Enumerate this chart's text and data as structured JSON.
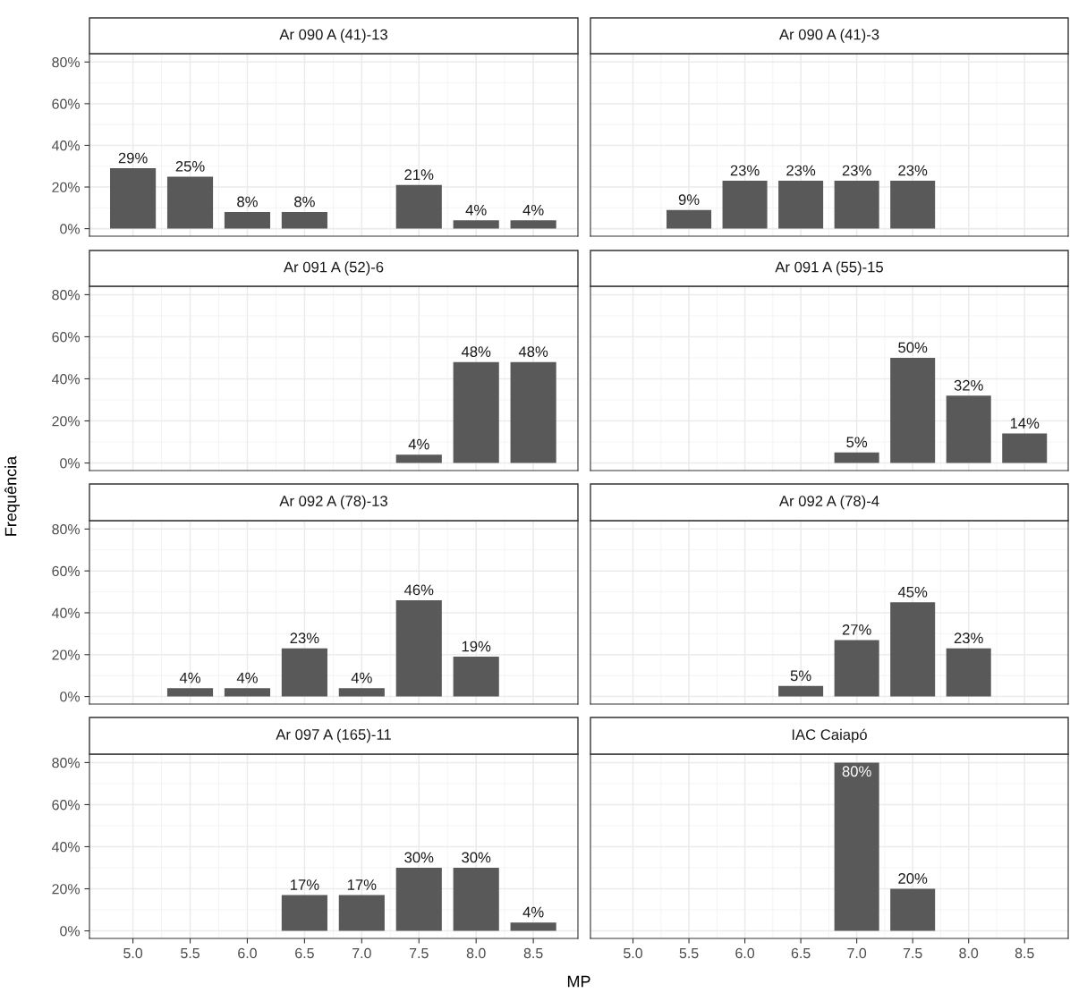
{
  "chart_data": [
    {
      "type": "bar",
      "title": "Ar 090 A (41)-13",
      "color": "#595959",
      "x": [
        5.0,
        5.5,
        6.0,
        6.5,
        7.5,
        8.0,
        8.5
      ],
      "values": [
        29,
        25,
        8,
        8,
        21,
        4,
        4
      ],
      "value_labels": [
        "29%",
        "25%",
        "8%",
        "8%",
        "21%",
        "4%",
        "4%"
      ],
      "xlim": [
        4.62,
        8.89
      ],
      "xticks": [
        5,
        5.5,
        6,
        6.5,
        7,
        7.5,
        8,
        8.5
      ],
      "ylim": [
        -3.6,
        84
      ],
      "yticks": [
        {
          "value": 0,
          "label": "0%"
        },
        {
          "value": 20,
          "label": "20%"
        },
        {
          "value": 40,
          "label": "40%"
        },
        {
          "value": 60,
          "label": "60%"
        },
        {
          "value": 80,
          "label": "80%"
        }
      ],
      "grid": true,
      "tick_labels": "y"
    },
    {
      "type": "bar",
      "title": "Ar 090 A (41)-3",
      "color": "#595959",
      "x": [
        5.5,
        6.0,
        6.5,
        7.0,
        7.5
      ],
      "values": [
        9,
        23,
        23,
        23,
        23
      ],
      "value_labels": [
        "9%",
        "23%",
        "23%",
        "23%",
        "23%"
      ],
      "xlim": [
        4.62,
        8.89
      ],
      "xticks": [
        5,
        5.5,
        6,
        6.5,
        7,
        7.5,
        8,
        8.5
      ],
      "ylim": [
        -3.6,
        84
      ],
      "yticks": [
        0,
        20,
        40,
        60,
        80
      ],
      "grid": true,
      "tick_labels": false
    },
    {
      "type": "bar",
      "title": "Ar 091 A (52)-6",
      "color": "#595959",
      "x": [
        7.5,
        8.0,
        8.5
      ],
      "values": [
        4,
        48,
        48
      ],
      "value_labels": [
        "4%",
        "48%",
        "48%"
      ],
      "xlim": [
        4.62,
        8.89
      ],
      "xticks": [
        5,
        5.5,
        6,
        6.5,
        7,
        7.5,
        8,
        8.5
      ],
      "ylim": [
        -3.6,
        84
      ],
      "yticks": [
        {
          "value": 0,
          "label": "0%"
        },
        {
          "value": 20,
          "label": "20%"
        },
        {
          "value": 40,
          "label": "40%"
        },
        {
          "value": 60,
          "label": "60%"
        },
        {
          "value": 80,
          "label": "80%"
        }
      ],
      "grid": true,
      "tick_labels": "y"
    },
    {
      "type": "bar",
      "title": "Ar 091 A (55)-15",
      "color": "#595959",
      "x": [
        7.0,
        7.5,
        8.0,
        8.5
      ],
      "values": [
        5,
        50,
        32,
        14
      ],
      "value_labels": [
        "5%",
        "50%",
        "32%",
        "14%"
      ],
      "xlim": [
        4.62,
        8.89
      ],
      "xticks": [
        5,
        5.5,
        6,
        6.5,
        7,
        7.5,
        8,
        8.5
      ],
      "ylim": [
        -3.6,
        84
      ],
      "yticks": [
        0,
        20,
        40,
        60,
        80
      ],
      "grid": true,
      "tick_labels": false
    },
    {
      "type": "bar",
      "title": "Ar 092 A (78)-13",
      "ylabel": "Frequência",
      "color": "#595959",
      "x": [
        5.5,
        6.0,
        6.5,
        7.0,
        7.5,
        8.0
      ],
      "values": [
        4,
        4,
        23,
        4,
        46,
        19
      ],
      "value_labels": [
        "4%",
        "4%",
        "23%",
        "4%",
        "46%",
        "19%"
      ],
      "xlim": [
        4.62,
        8.89
      ],
      "xticks": [
        5,
        5.5,
        6,
        6.5,
        7,
        7.5,
        8,
        8.5
      ],
      "ylim": [
        -3.6,
        84
      ],
      "yticks": [
        {
          "value": 0,
          "label": "0%"
        },
        {
          "value": 20,
          "label": "20%"
        },
        {
          "value": 40,
          "label": "40%"
        },
        {
          "value": 60,
          "label": "60%"
        },
        {
          "value": 80,
          "label": "80%"
        }
      ],
      "grid": true,
      "tick_labels": "y"
    },
    {
      "type": "bar",
      "title": "Ar 092 A (78)-4",
      "color": "#595959",
      "x": [
        6.5,
        7.0,
        7.5,
        8.0
      ],
      "values": [
        5,
        27,
        45,
        23
      ],
      "value_labels": [
        "5%",
        "27%",
        "45%",
        "23%"
      ],
      "xlim": [
        4.62,
        8.89
      ],
      "xticks": [
        5,
        5.5,
        6,
        6.5,
        7,
        7.5,
        8,
        8.5
      ],
      "ylim": [
        -3.6,
        84
      ],
      "yticks": [
        0,
        20,
        40,
        60,
        80
      ],
      "grid": true,
      "tick_labels": false
    },
    {
      "type": "bar",
      "title": "Ar 097 A (165)-11",
      "xlabel": "MP",
      "color": "#595959",
      "x": [
        6.5,
        7.0,
        7.5,
        8.0,
        8.5
      ],
      "values": [
        17,
        17,
        30,
        30,
        4
      ],
      "value_labels": [
        "17%",
        "17%",
        "30%",
        "30%",
        "4%"
      ],
      "xlim": [
        4.62,
        8.89
      ],
      "xticks": [
        {
          "value": 5.0,
          "label": "5.0"
        },
        5.5,
        {
          "value": 6.0,
          "label": "6.0"
        },
        6.5,
        {
          "value": 7.0,
          "label": "7.0"
        },
        7.5,
        {
          "value": 8.0,
          "label": "8.0"
        },
        8.5
      ],
      "ylim": [
        -3.6,
        84
      ],
      "yticks": [
        {
          "value": 0,
          "label": "0%"
        },
        {
          "value": 20,
          "label": "20%"
        },
        {
          "value": 40,
          "label": "40%"
        },
        {
          "value": 60,
          "label": "60%"
        },
        {
          "value": 80,
          "label": "80%"
        }
      ],
      "grid": true
    },
    {
      "type": "bar",
      "title": "IAC Caiapó",
      "color": "#595959",
      "x": [
        7.0,
        7.5
      ],
      "values": [
        80,
        20
      ],
      "value_labels": [
        "80%",
        "20%"
      ],
      "xlim": [
        4.62,
        8.89
      ],
      "xticks": [
        {
          "value": 5.0,
          "label": "5.0"
        },
        5.5,
        {
          "value": 6.0,
          "label": "6.0"
        },
        6.5,
        {
          "value": 7.0,
          "label": "7.0"
        },
        7.5,
        {
          "value": 8.0,
          "label": "8.0"
        },
        8.5
      ],
      "ylim": [
        -3.6,
        84
      ],
      "yticks": [
        0,
        20,
        40,
        60,
        80
      ],
      "grid": true,
      "tick_labels": "x"
    }
  ]
}
